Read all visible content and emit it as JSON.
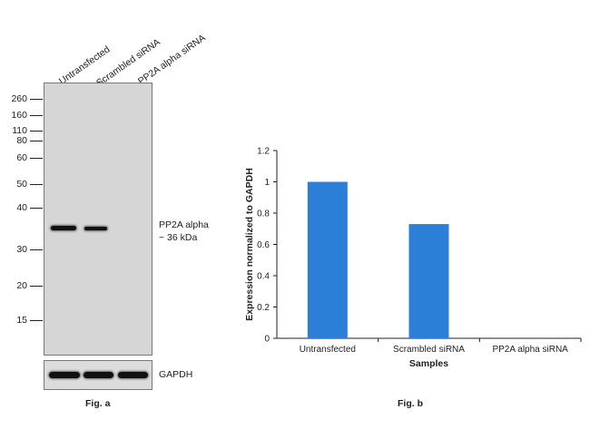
{
  "figure_a": {
    "lanes": [
      "Untransfected",
      "Scrambled siRNA",
      "PP2A alpha siRNA"
    ],
    "mw_markers": [
      "260",
      "160",
      "110",
      "80",
      "60",
      "50",
      "40",
      "30",
      "20",
      "15"
    ],
    "band_label_line1": "PP2A alpha",
    "band_label_line2": "~ 36 kDa",
    "loading_control_label": "GAPDH",
    "caption": "Fig. a"
  },
  "figure_b": {
    "caption": "Fig. b"
  },
  "chart_data": {
    "type": "bar",
    "categories": [
      "Untransfected",
      "Scrambled siRNA",
      "PP2A alpha  siRNA"
    ],
    "values": [
      1.0,
      0.73,
      0.0
    ],
    "yticks": [
      "0",
      "0.2",
      "0.4",
      "0.6",
      "0.8",
      "1",
      "1.2"
    ],
    "xlabel": "Samples",
    "ylabel": "Expression normalized to GAPDH",
    "ylim": [
      0,
      1.2
    ],
    "bar_color": "#2b7fd6",
    "grid": false,
    "legend": "none"
  }
}
